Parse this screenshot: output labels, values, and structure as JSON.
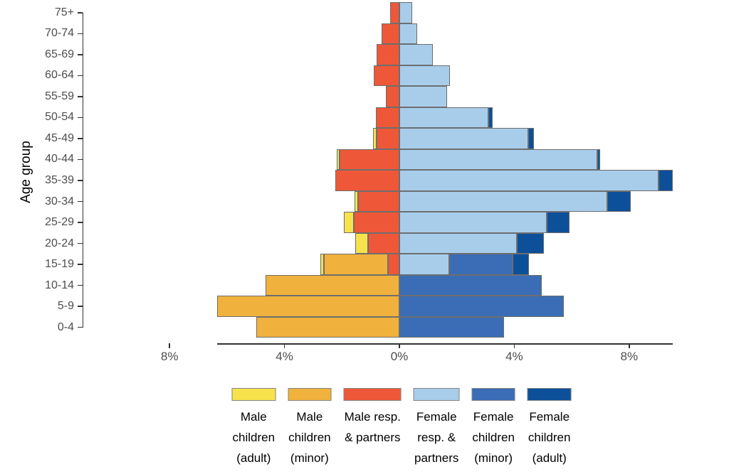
{
  "chart_data": {
    "type": "bar",
    "subtype": "population_pyramid_stacked_horizontal",
    "title": "",
    "xlabel": "",
    "ylabel": "Age group",
    "grid": false,
    "legend_position": "bottom",
    "categories_top_to_bottom": [
      "75+",
      "70-74",
      "65-69",
      "60-64",
      "55-59",
      "50-54",
      "45-49",
      "40-44",
      "35-39",
      "30-34",
      "25-29",
      "20-24",
      "15-19",
      "10-14",
      "5-9",
      "0-4"
    ],
    "x_axis": {
      "tick_values": [
        -8,
        -4,
        0,
        4,
        8
      ],
      "tick_labels": [
        "8%",
        "4%",
        "0%",
        "4%",
        "8%"
      ],
      "note": "left side = male (shown as negative), right side = female, values are percent"
    },
    "series": [
      {
        "name": "Male children (adult)",
        "legend_lines": [
          "Male",
          "children",
          "(adult)"
        ],
        "side": "left",
        "stack_order_from_zero": 3,
        "color": "#F7E24C",
        "values": [
          0,
          0,
          0,
          0,
          0,
          0,
          0.13,
          0.09,
          0,
          0.11,
          0.36,
          0.44,
          0.12,
          0,
          0,
          0
        ]
      },
      {
        "name": "Male children (minor)",
        "legend_lines": [
          "Male",
          "children",
          "(minor)"
        ],
        "side": "left",
        "stack_order_from_zero": 2,
        "color": "#F0B23C",
        "values": [
          0,
          0,
          0,
          0,
          0,
          0,
          0,
          0,
          0,
          0,
          0,
          0,
          2.24,
          4.67,
          6.35,
          4.97
        ]
      },
      {
        "name": "Male resp. & partners",
        "legend_lines": [
          "Male resp.",
          "& partners"
        ],
        "side": "left",
        "stack_order_from_zero": 1,
        "color": "#EE5839",
        "values": [
          0.32,
          0.61,
          0.79,
          0.89,
          0.46,
          0.81,
          0.79,
          2.08,
          2.23,
          1.44,
          1.58,
          1.09,
          0.39,
          0,
          0,
          0
        ]
      },
      {
        "name": "Female resp. & partners",
        "legend_lines": [
          "Female",
          "resp. &",
          "partners"
        ],
        "side": "right",
        "stack_order_from_zero": 1,
        "color": "#A8CDEB",
        "values": [
          0.45,
          0.61,
          1.17,
          1.76,
          1.65,
          3.09,
          4.49,
          6.89,
          9.03,
          7.24,
          5.14,
          4.08,
          1.74,
          0,
          0,
          0
        ]
      },
      {
        "name": "Female children (minor)",
        "legend_lines": [
          "Female",
          "children",
          "(minor)"
        ],
        "side": "right",
        "stack_order_from_zero": 2,
        "color": "#3A6DB5",
        "values": [
          0,
          0,
          0,
          0,
          0,
          0,
          0,
          0,
          0,
          0,
          0,
          0,
          2.19,
          4.95,
          5.73,
          3.65
        ]
      },
      {
        "name": "Female children (adult)",
        "legend_lines": [
          "Female",
          "children",
          "(adult)"
        ],
        "side": "right",
        "stack_order_from_zero": 3,
        "color": "#0D509A",
        "values": [
          0,
          0,
          0,
          0,
          0,
          0.15,
          0.19,
          0.1,
          0.48,
          0.81,
          0.79,
          0.95,
          0.58,
          0,
          0,
          0
        ]
      }
    ],
    "style_colors": {
      "bar_border": "#6E6E6E",
      "axis": "#333333",
      "tick_label": "#4D4D4D",
      "background": "#FFFFFF"
    }
  }
}
